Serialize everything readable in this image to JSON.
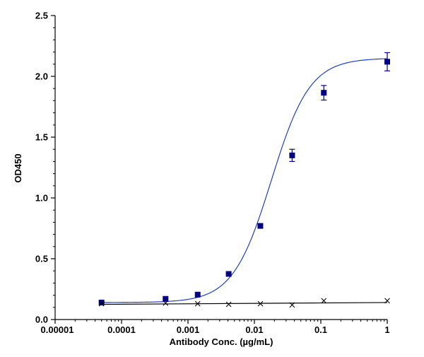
{
  "chart_data": {
    "type": "scatter",
    "xscale": "log",
    "xlim": [
      1e-05,
      1
    ],
    "ylim": [
      0,
      2.5
    ],
    "grid": false,
    "legend": "none",
    "xlabel": "Antibody Conc. (µg/mL)",
    "ylabel": "OD450",
    "xticks": [
      {
        "value": 1e-05,
        "label": "0.00001"
      },
      {
        "value": 0.0001,
        "label": "0.0001"
      },
      {
        "value": 0.001,
        "label": "0.001"
      },
      {
        "value": 0.01,
        "label": "0.01"
      },
      {
        "value": 0.1,
        "label": "0.1"
      },
      {
        "value": 1,
        "label": "1"
      }
    ],
    "yticks": [
      {
        "value": 0.0,
        "label": "0.0"
      },
      {
        "value": 0.5,
        "label": "0.5"
      },
      {
        "value": 1.0,
        "label": "1.0"
      },
      {
        "value": 1.5,
        "label": "1.5"
      },
      {
        "value": 2.0,
        "label": "2.0"
      },
      {
        "value": 2.5,
        "label": "2.5"
      }
    ],
    "series": [
      {
        "marker": "square",
        "color": "#000080",
        "line_color": "#2040c0",
        "fit": {
          "model": "4PL",
          "bottom": 0.14,
          "top": 2.15,
          "ec50": 0.018,
          "hill": 1.5
        },
        "points": [
          {
            "x": 5e-05,
            "y": 0.14
          },
          {
            "x": 0.00046,
            "y": 0.17
          },
          {
            "x": 0.0014,
            "y": 0.205
          },
          {
            "x": 0.0041,
            "y": 0.375
          },
          {
            "x": 0.0123,
            "y": 0.77
          },
          {
            "x": 0.037,
            "y": 1.35,
            "err": 0.05
          },
          {
            "x": 0.111,
            "y": 1.865,
            "err": 0.06
          },
          {
            "x": 1.0,
            "y": 2.12,
            "err": 0.075
          }
        ]
      },
      {
        "marker": "x",
        "color": "#000000",
        "line_color": "#000000",
        "fit": {
          "model": "linear",
          "from": [
            5e-05,
            0.125
          ],
          "to": [
            1.0,
            0.14
          ]
        },
        "points": [
          {
            "x": 5e-05,
            "y": 0.13
          },
          {
            "x": 0.00046,
            "y": 0.135
          },
          {
            "x": 0.0014,
            "y": 0.13
          },
          {
            "x": 0.0041,
            "y": 0.125
          },
          {
            "x": 0.0123,
            "y": 0.13
          },
          {
            "x": 0.037,
            "y": 0.12
          },
          {
            "x": 0.111,
            "y": 0.155
          },
          {
            "x": 1.0,
            "y": 0.155
          }
        ]
      }
    ]
  }
}
